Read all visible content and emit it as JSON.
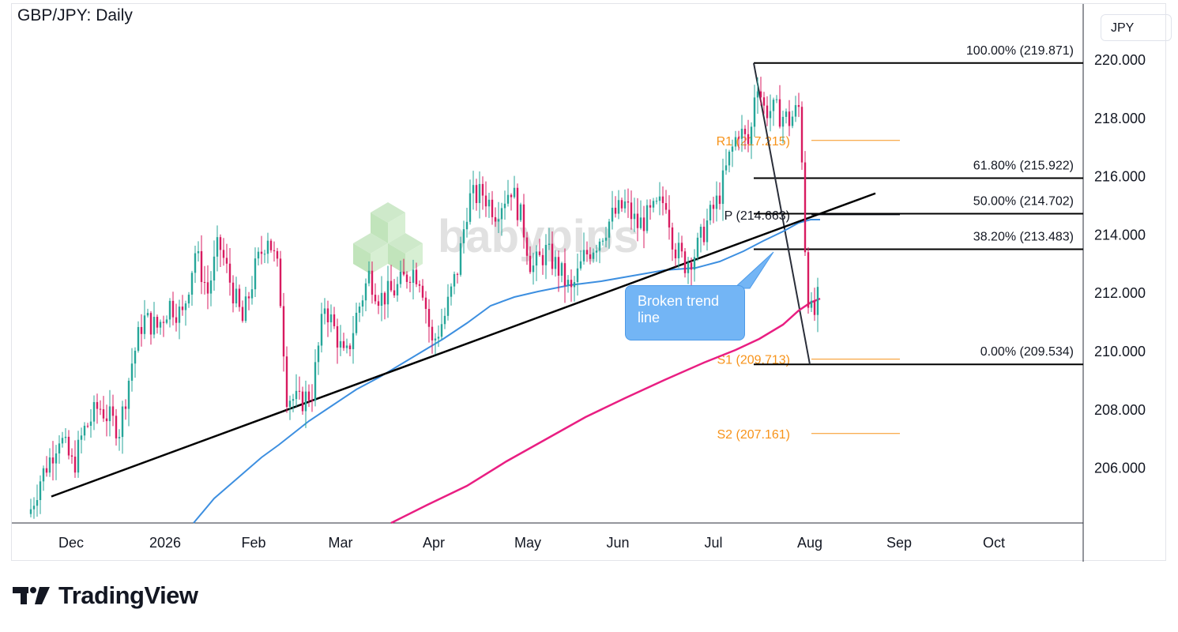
{
  "title": "GBP/JPY: Daily",
  "unit": "JPY",
  "brand": {
    "name": "TradingView",
    "watermark": "babypips"
  },
  "callout": {
    "text": "Broken trend line"
  },
  "colors": {
    "up": "#26a69a",
    "down": "#d81b60",
    "ma_short": "#3d8fe0",
    "ma_long": "#e91e82",
    "pivot": "#f7931a",
    "trend": "#000000",
    "grid_text": "#131722"
  },
  "chart_data": {
    "type": "candlestick",
    "y_axis": {
      "min": 204.2,
      "max": 221.5,
      "ticks": [
        "220.000",
        "218.000",
        "216.000",
        "214.000",
        "212.000",
        "210.000",
        "208.000",
        "206.000"
      ]
    },
    "x_axis": {
      "labels": [
        "Dec",
        "2026",
        "Feb",
        "Mar",
        "Apr",
        "May",
        "Jun",
        "Jul",
        "Aug",
        "Sep",
        "Oct"
      ]
    },
    "grid": false,
    "fibonacci": [
      {
        "label": "100.00% (219.871)",
        "value": 219.871
      },
      {
        "label": "61.80% (215.922)",
        "value": 215.922
      },
      {
        "label": "50.00% (214.702)",
        "value": 214.702
      },
      {
        "label": "38.20% (213.483)",
        "value": 213.483
      },
      {
        "label": "0.00% (209.534)",
        "value": 209.534
      }
    ],
    "pivots": [
      {
        "label": "R1 (217.215)",
        "value": 217.215
      },
      {
        "label": "P (214.663)",
        "value": 214.663
      },
      {
        "label": "S1 (209.713)",
        "value": 209.713
      },
      {
        "label": "S2 (207.161)",
        "value": 207.161
      }
    ],
    "trend_line": {
      "from": [
        "Dec",
        205.0
      ],
      "to": [
        "Aug",
        215.4
      ]
    },
    "series": [
      {
        "name": "GBP/JPY",
        "style": "candles"
      },
      {
        "style": "line",
        "role": "moving-average-short"
      },
      {
        "style": "line",
        "role": "moving-average-long"
      }
    ]
  }
}
